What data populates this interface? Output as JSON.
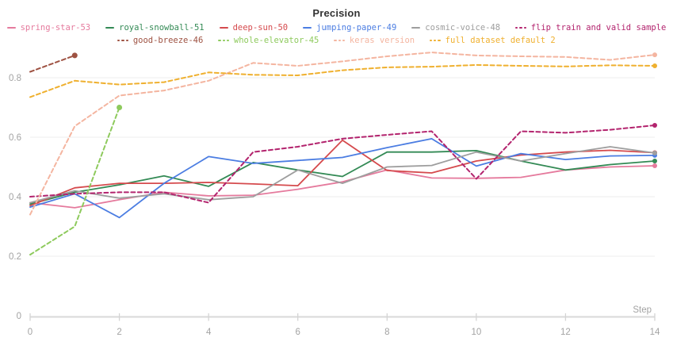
{
  "header": {
    "title": "Precision"
  },
  "axes": {
    "x_label": "Step",
    "x_tick_labels": [
      "0",
      "2",
      "4",
      "6",
      "8",
      "10",
      "12",
      "14"
    ],
    "y_tick_labels": [
      "0",
      "0.2",
      "0.4",
      "0.6",
      "0.8"
    ],
    "tick_label_color": "#a3a3a3",
    "axis_line_color": "#d9d9d9",
    "grid_color": "#ededed"
  },
  "chart_data": {
    "type": "line",
    "title": "Precision",
    "xlabel": "Step",
    "ylabel": "",
    "xlim": [
      0,
      14
    ],
    "ylim": [
      0,
      0.92
    ],
    "x_tick_values": [
      0,
      2,
      4,
      6,
      8,
      10,
      12,
      14
    ],
    "y_tick_values": [
      0,
      0.2,
      0.4,
      0.6,
      0.8
    ],
    "grid": "horizontal-only",
    "legend_position": "top",
    "series": [
      {
        "name": "spring-star-53",
        "color": "#e57a9d",
        "dashed": false,
        "legend_row": 0,
        "values": [
          0.38,
          0.363,
          0.39,
          0.415,
          0.403,
          0.405,
          0.425,
          0.45,
          0.49,
          0.463,
          0.462,
          0.465,
          0.49,
          0.5,
          0.504
        ]
      },
      {
        "name": "royal-snowball-51",
        "color": "#338a55",
        "dashed": false,
        "legend_row": 0,
        "values": [
          0.375,
          0.415,
          0.44,
          0.47,
          0.435,
          0.515,
          0.49,
          0.468,
          0.55,
          0.55,
          0.555,
          0.52,
          0.49,
          0.508,
          0.52
        ]
      },
      {
        "name": "deep-sun-50",
        "color": "#d54a4d",
        "dashed": false,
        "legend_row": 0,
        "values": [
          0.37,
          0.43,
          0.445,
          0.445,
          0.448,
          0.443,
          0.437,
          0.59,
          0.488,
          0.48,
          0.52,
          0.54,
          0.55,
          0.556,
          0.548
        ]
      },
      {
        "name": "jumping-paper-49",
        "color": "#4b7de2",
        "dashed": false,
        "legend_row": 0,
        "values": [
          0.365,
          0.41,
          0.33,
          0.445,
          0.535,
          0.512,
          0.522,
          0.532,
          0.565,
          0.595,
          0.503,
          0.545,
          0.525,
          0.537,
          0.539
        ]
      },
      {
        "name": "cosmic-voice-48",
        "color": "#9e9e9e",
        "dashed": false,
        "legend_row": 0,
        "values": [
          0.38,
          0.42,
          0.395,
          0.41,
          0.39,
          0.4,
          0.49,
          0.445,
          0.5,
          0.505,
          0.55,
          0.52,
          0.545,
          0.568,
          0.547
        ]
      },
      {
        "name": "flip train and valid sample",
        "color": "#b3246e",
        "dashed": true,
        "legend_row": 0,
        "values": [
          0.4,
          0.41,
          0.415,
          0.415,
          0.38,
          0.55,
          0.568,
          0.595,
          0.608,
          0.62,
          0.46,
          0.62,
          0.615,
          0.625,
          0.64
        ]
      },
      {
        "name": "good-breeze-46",
        "color": "#9e5242",
        "dashed": true,
        "legend_row": 1,
        "values": [
          0.82,
          0.875
        ]
      },
      {
        "name": "whole-elevator-45",
        "color": "#8eca5d",
        "dashed": true,
        "legend_row": 1,
        "values": [
          0.205,
          0.3,
          0.7
        ]
      },
      {
        "name": "keras version",
        "color": "#f4b5a0",
        "dashed": true,
        "legend_row": 1,
        "values": [
          0.34,
          0.637,
          0.74,
          0.757,
          0.79,
          0.85,
          0.84,
          0.855,
          0.872,
          0.885,
          0.875,
          0.872,
          0.87,
          0.86,
          0.877
        ]
      },
      {
        "name": "full dataset default 2",
        "color": "#efb02f",
        "dashed": true,
        "legend_row": 1,
        "values": [
          0.735,
          0.79,
          0.777,
          0.785,
          0.818,
          0.81,
          0.808,
          0.825,
          0.835,
          0.837,
          0.843,
          0.84,
          0.838,
          0.842,
          0.84
        ]
      }
    ]
  }
}
